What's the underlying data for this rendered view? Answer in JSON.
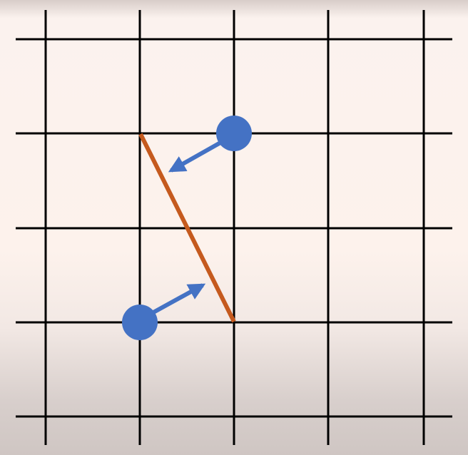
{
  "grid": {
    "columns": 5,
    "rows": 5,
    "line_color": "#000000"
  },
  "segment": {
    "from": {
      "col": 1,
      "row": 1
    },
    "to": {
      "col": 2,
      "row": 3
    },
    "color": "#c55a1e"
  },
  "points": [
    {
      "name": "upper-point",
      "col": 2,
      "row": 1,
      "color": "#4472c4"
    },
    {
      "name": "lower-point",
      "col": 1,
      "row": 3,
      "color": "#4472c4"
    }
  ],
  "arrows": [
    {
      "name": "upper-arrow",
      "color": "#4472c4",
      "direction": "toward-segment"
    },
    {
      "name": "lower-arrow",
      "color": "#4472c4",
      "direction": "toward-segment"
    }
  ]
}
